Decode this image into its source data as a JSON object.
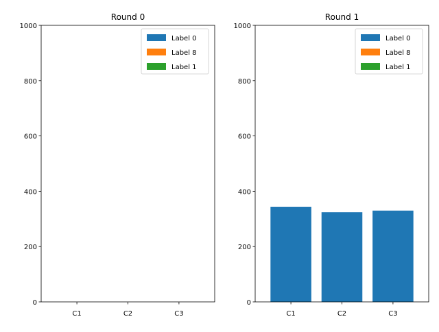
{
  "chart_data": [
    {
      "type": "bar",
      "stacked": true,
      "title": "Round 0",
      "categories": [
        "C1",
        "C2",
        "C3"
      ],
      "ylim": [
        0,
        1000
      ],
      "yticks": [
        "0",
        "200",
        "400",
        "600",
        "800",
        "1000"
      ],
      "legend_position": "top-right",
      "series": [
        {
          "name": "Label 0",
          "color": "#1f77b4",
          "values": [
            0,
            0,
            0
          ]
        },
        {
          "name": "Label 8",
          "color": "#ff7f0e",
          "values": [
            0,
            0,
            0
          ]
        },
        {
          "name": "Label 1",
          "color": "#2ca02c",
          "values": [
            0,
            0,
            0
          ]
        }
      ]
    },
    {
      "type": "bar",
      "stacked": true,
      "title": "Round 1",
      "categories": [
        "C1",
        "C2",
        "C3"
      ],
      "ylim": [
        0,
        1000
      ],
      "yticks": [
        "0",
        "200",
        "400",
        "600",
        "800",
        "1000"
      ],
      "legend_position": "top-right",
      "series": [
        {
          "name": "Label 0",
          "color": "#1f77b4",
          "values": [
            344,
            324,
            330
          ]
        },
        {
          "name": "Label 8",
          "color": "#ff7f0e",
          "values": [
            0,
            0,
            0
          ]
        },
        {
          "name": "Label 1",
          "color": "#2ca02c",
          "values": [
            0,
            0,
            0
          ]
        }
      ]
    }
  ]
}
